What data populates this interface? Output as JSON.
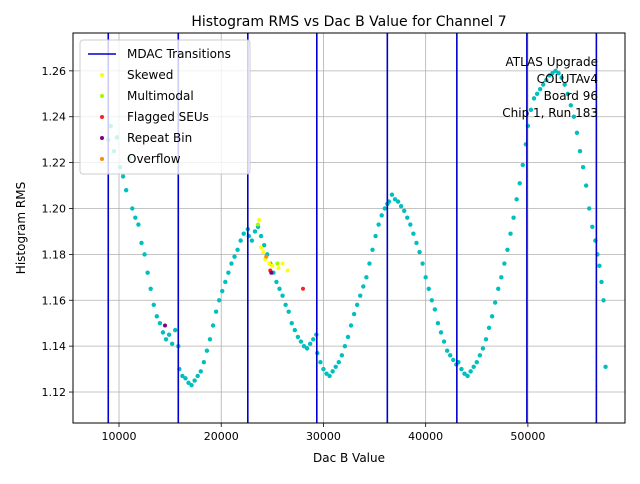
{
  "chart_data": {
    "type": "scatter",
    "title": "Histogram RMS vs Dac B Value for Channel 7",
    "xlabel": "Dac B Value",
    "ylabel": "Histogram RMS",
    "xlim": [
      5500,
      59500
    ],
    "ylim": [
      1.1065,
      1.2765
    ],
    "xticks": [
      10000,
      20000,
      30000,
      40000,
      50000
    ],
    "yticks": [
      1.12,
      1.14,
      1.16,
      1.18,
      1.2,
      1.22,
      1.24,
      1.26
    ],
    "grid": true,
    "legend_position": "top-left",
    "annotation_lines": [
      "ATLAS Upgrade",
      "COLUTAv4",
      "Board 96",
      "Chip 1, Run 183"
    ],
    "mdac_transitions": [
      8950,
      15800,
      22600,
      29350,
      36250,
      43050,
      49900,
      56700
    ],
    "legend": [
      {
        "name": "MDAC Transitions",
        "color": "#0000cc",
        "marker": "line"
      },
      {
        "name": "Skewed",
        "color": "#ffff00",
        "marker": "dot"
      },
      {
        "name": "Multimodal",
        "color": "#99ff00",
        "marker": "dot"
      },
      {
        "name": "Flagged SEUs",
        "color": "#ff2020",
        "marker": "dot"
      },
      {
        "name": "Repeat Bin",
        "color": "#800080",
        "marker": "dot"
      },
      {
        "name": "Overflow",
        "color": "#ff8c00",
        "marker": "dot"
      }
    ],
    "series": [
      {
        "name": "",
        "color": "#00bfbf",
        "points": [
          [
            8950,
            1.23
          ],
          [
            9200,
            1.236
          ],
          [
            9500,
            1.225
          ],
          [
            9800,
            1.231
          ],
          [
            10100,
            1.218
          ],
          [
            10400,
            1.214
          ],
          [
            10700,
            1.208
          ],
          [
            11000,
            1.222
          ],
          [
            11300,
            1.2
          ],
          [
            11600,
            1.196
          ],
          [
            11900,
            1.193
          ],
          [
            12200,
            1.185
          ],
          [
            12500,
            1.18
          ],
          [
            12800,
            1.172
          ],
          [
            13100,
            1.165
          ],
          [
            13400,
            1.158
          ],
          [
            13700,
            1.153
          ],
          [
            14000,
            1.15
          ],
          [
            14300,
            1.146
          ],
          [
            14600,
            1.143
          ],
          [
            14900,
            1.145
          ],
          [
            15200,
            1.141
          ],
          [
            15500,
            1.147
          ],
          [
            15800,
            1.14
          ],
          [
            15900,
            1.13
          ],
          [
            16200,
            1.127
          ],
          [
            16500,
            1.126
          ],
          [
            16800,
            1.124
          ],
          [
            17100,
            1.123
          ],
          [
            17400,
            1.125
          ],
          [
            17700,
            1.127
          ],
          [
            18000,
            1.129
          ],
          [
            18300,
            1.133
          ],
          [
            18600,
            1.138
          ],
          [
            18900,
            1.143
          ],
          [
            19200,
            1.149
          ],
          [
            19500,
            1.155
          ],
          [
            19800,
            1.16
          ],
          [
            20100,
            1.164
          ],
          [
            20400,
            1.168
          ],
          [
            20700,
            1.172
          ],
          [
            21000,
            1.176
          ],
          [
            21300,
            1.179
          ],
          [
            21600,
            1.182
          ],
          [
            21900,
            1.186
          ],
          [
            22200,
            1.189
          ],
          [
            22600,
            1.191
          ],
          [
            22700,
            1.188
          ],
          [
            23000,
            1.186
          ],
          [
            23300,
            1.19
          ],
          [
            23600,
            1.192
          ],
          [
            23900,
            1.188
          ],
          [
            24200,
            1.184
          ],
          [
            24500,
            1.18
          ],
          [
            24800,
            1.176
          ],
          [
            25100,
            1.172
          ],
          [
            25400,
            1.168
          ],
          [
            25700,
            1.165
          ],
          [
            26000,
            1.162
          ],
          [
            26300,
            1.158
          ],
          [
            26600,
            1.155
          ],
          [
            26900,
            1.15
          ],
          [
            27200,
            1.147
          ],
          [
            27500,
            1.144
          ],
          [
            27800,
            1.142
          ],
          [
            28100,
            1.14
          ],
          [
            28400,
            1.139
          ],
          [
            28700,
            1.141
          ],
          [
            29000,
            1.143
          ],
          [
            29300,
            1.145
          ],
          [
            29400,
            1.137
          ],
          [
            29700,
            1.133
          ],
          [
            30000,
            1.13
          ],
          [
            30300,
            1.128
          ],
          [
            30600,
            1.127
          ],
          [
            30900,
            1.129
          ],
          [
            31200,
            1.131
          ],
          [
            31500,
            1.133
          ],
          [
            31800,
            1.136
          ],
          [
            32100,
            1.14
          ],
          [
            32400,
            1.144
          ],
          [
            32700,
            1.149
          ],
          [
            33000,
            1.154
          ],
          [
            33300,
            1.158
          ],
          [
            33600,
            1.162
          ],
          [
            33900,
            1.166
          ],
          [
            34200,
            1.17
          ],
          [
            34500,
            1.176
          ],
          [
            34800,
            1.182
          ],
          [
            35100,
            1.188
          ],
          [
            35400,
            1.193
          ],
          [
            35700,
            1.197
          ],
          [
            36000,
            1.2
          ],
          [
            36250,
            1.202
          ],
          [
            36400,
            1.203
          ],
          [
            36700,
            1.206
          ],
          [
            37000,
            1.204
          ],
          [
            37300,
            1.203
          ],
          [
            37600,
            1.201
          ],
          [
            37900,
            1.199
          ],
          [
            38200,
            1.196
          ],
          [
            38500,
            1.193
          ],
          [
            38800,
            1.189
          ],
          [
            39100,
            1.185
          ],
          [
            39400,
            1.181
          ],
          [
            39700,
            1.176
          ],
          [
            40000,
            1.17
          ],
          [
            40300,
            1.165
          ],
          [
            40600,
            1.16
          ],
          [
            40900,
            1.156
          ],
          [
            41200,
            1.15
          ],
          [
            41500,
            1.146
          ],
          [
            41800,
            1.142
          ],
          [
            42100,
            1.138
          ],
          [
            42400,
            1.136
          ],
          [
            42700,
            1.134
          ],
          [
            43000,
            1.132
          ],
          [
            43200,
            1.133
          ],
          [
            43500,
            1.13
          ],
          [
            43800,
            1.128
          ],
          [
            44100,
            1.127
          ],
          [
            44400,
            1.129
          ],
          [
            44700,
            1.131
          ],
          [
            45000,
            1.133
          ],
          [
            45300,
            1.136
          ],
          [
            45600,
            1.139
          ],
          [
            45900,
            1.143
          ],
          [
            46200,
            1.148
          ],
          [
            46500,
            1.153
          ],
          [
            46800,
            1.159
          ],
          [
            47100,
            1.165
          ],
          [
            47400,
            1.17
          ],
          [
            47700,
            1.176
          ],
          [
            48000,
            1.182
          ],
          [
            48300,
            1.189
          ],
          [
            48600,
            1.196
          ],
          [
            48900,
            1.204
          ],
          [
            49200,
            1.211
          ],
          [
            49500,
            1.219
          ],
          [
            49800,
            1.228
          ],
          [
            50000,
            1.236
          ],
          [
            50300,
            1.243
          ],
          [
            50600,
            1.248
          ],
          [
            50900,
            1.25
          ],
          [
            51200,
            1.252
          ],
          [
            51500,
            1.254
          ],
          [
            51800,
            1.256
          ],
          [
            52100,
            1.258
          ],
          [
            52400,
            1.259
          ],
          [
            52700,
            1.26
          ],
          [
            53000,
            1.259
          ],
          [
            53300,
            1.257
          ],
          [
            53600,
            1.254
          ],
          [
            53900,
            1.25
          ],
          [
            54200,
            1.245
          ],
          [
            54500,
            1.24
          ],
          [
            54800,
            1.233
          ],
          [
            55100,
            1.225
          ],
          [
            55400,
            1.218
          ],
          [
            55700,
            1.21
          ],
          [
            56000,
            1.2
          ],
          [
            56300,
            1.192
          ],
          [
            56600,
            1.186
          ],
          [
            56800,
            1.18
          ],
          [
            57000,
            1.175
          ],
          [
            57200,
            1.168
          ],
          [
            57400,
            1.16
          ],
          [
            57600,
            1.131
          ]
        ]
      },
      {
        "name": "Skewed",
        "color": "#ffff00",
        "points": [
          [
            23700,
            1.195
          ],
          [
            23900,
            1.183
          ],
          [
            24100,
            1.181
          ],
          [
            24300,
            1.178
          ],
          [
            24700,
            1.176
          ],
          [
            25000,
            1.175
          ],
          [
            25600,
            1.174
          ],
          [
            26000,
            1.176
          ],
          [
            26500,
            1.173
          ]
        ]
      },
      {
        "name": "Multimodal",
        "color": "#99ff00",
        "points": [
          [
            23600,
            1.193
          ],
          [
            25500,
            1.176
          ]
        ]
      },
      {
        "name": "Flagged SEUs",
        "color": "#ff2020",
        "points": [
          [
            24800,
            1.173
          ],
          [
            28000,
            1.165
          ]
        ]
      },
      {
        "name": "Repeat Bin",
        "color": "#800080",
        "points": [
          [
            14500,
            1.149
          ],
          [
            24900,
            1.172
          ]
        ]
      },
      {
        "name": "Overflow",
        "color": "#ff8c00",
        "points": [
          [
            24400,
            1.179
          ]
        ]
      }
    ]
  }
}
